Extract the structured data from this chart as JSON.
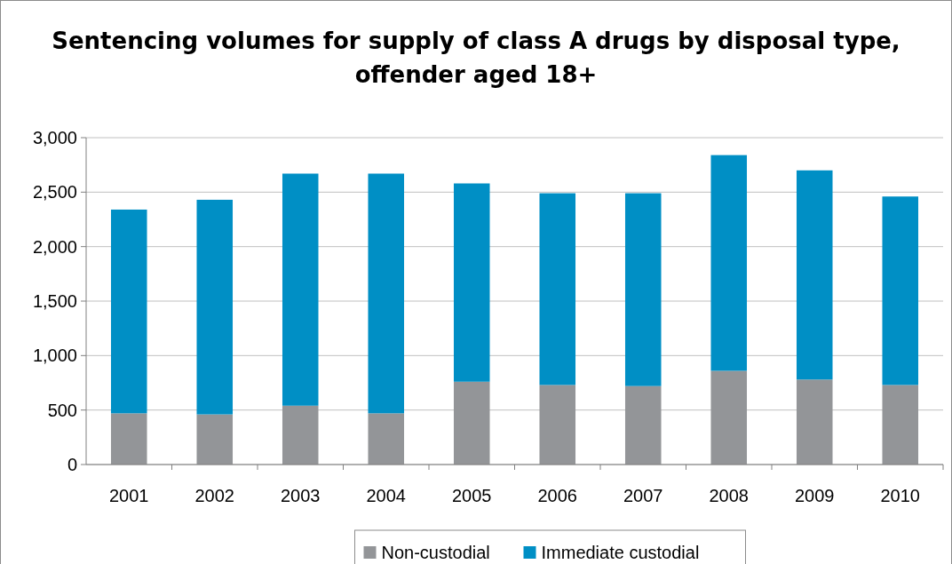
{
  "chart_data": {
    "type": "bar",
    "title": "Sentencing volumes for supply of class A drugs by disposal type, offender aged 18+",
    "categories": [
      "2001",
      "2002",
      "2003",
      "2004",
      "2005",
      "2006",
      "2007",
      "2008",
      "2009",
      "2010"
    ],
    "stacked": true,
    "series": [
      {
        "name": "Non-custodial",
        "color": "#939598",
        "values": [
          470,
          460,
          540,
          470,
          760,
          730,
          720,
          860,
          780,
          730
        ]
      },
      {
        "name": "Immediate custodial",
        "color": "#008fc5",
        "values": [
          1870,
          1970,
          2130,
          2200,
          1820,
          1760,
          1770,
          1980,
          1920,
          1730
        ]
      }
    ],
    "ylim": [
      0,
      3000
    ],
    "yticks": [
      {
        "value": 0,
        "label": "0"
      },
      {
        "value": 500,
        "label": "500"
      },
      {
        "value": 1000,
        "label": "1,000"
      },
      {
        "value": 1500,
        "label": "1,500"
      },
      {
        "value": 2000,
        "label": "2,000"
      },
      {
        "value": 2500,
        "label": "2,500"
      },
      {
        "value": 3000,
        "label": "3,000"
      }
    ],
    "grid": "y",
    "legend": "bottom"
  }
}
